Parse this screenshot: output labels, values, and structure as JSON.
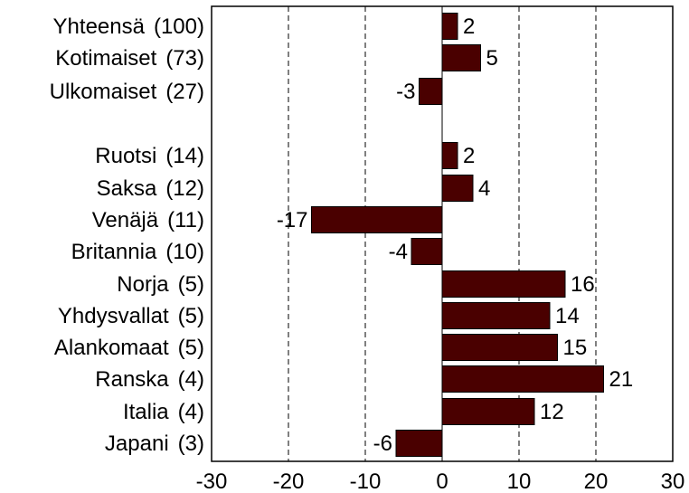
{
  "chart_data": {
    "type": "bar",
    "orientation": "horizontal",
    "bar_color": "#4a0000",
    "grid": {
      "x": true,
      "style": "dashed"
    },
    "xlim": [
      -30,
      30
    ],
    "xticks": [
      "-30",
      "-20",
      "-10",
      "0",
      "10",
      "20",
      "30"
    ],
    "categories": [
      {
        "name": "Yhteensä",
        "weight": "(100)",
        "value": 2
      },
      {
        "name": "Kotimaiset",
        "weight": "(73)",
        "value": 5
      },
      {
        "name": "Ulkomaiset",
        "weight": "(27)",
        "value": -3
      },
      {
        "name": "Ruotsi",
        "weight": "(14)",
        "value": 2
      },
      {
        "name": "Saksa",
        "weight": "(12)",
        "value": 4
      },
      {
        "name": "Venäjä",
        "weight": "(11)",
        "value": -17
      },
      {
        "name": "Britannia",
        "weight": "(10)",
        "value": -4
      },
      {
        "name": "Norja",
        "weight": "(5)",
        "value": 16
      },
      {
        "name": "Yhdysvallat",
        "weight": "(5)",
        "value": 14
      },
      {
        "name": "Alankomaat",
        "weight": "(5)",
        "value": 15
      },
      {
        "name": "Ranska",
        "weight": "(4)",
        "value": 21
      },
      {
        "name": "Italia",
        "weight": "(4)",
        "value": 12
      },
      {
        "name": "Japani",
        "weight": "(3)",
        "value": -6
      }
    ]
  }
}
